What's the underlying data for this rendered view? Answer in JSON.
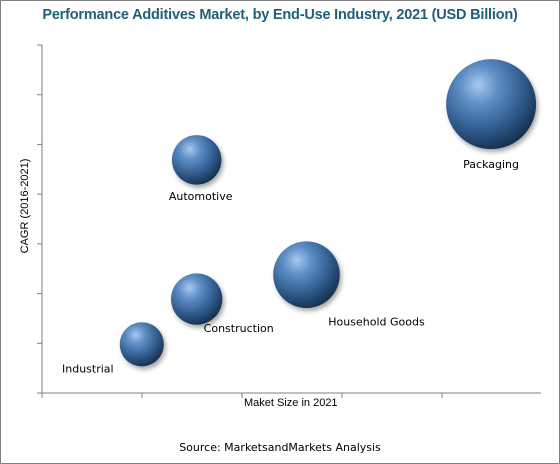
{
  "chart_data": {
    "type": "bubble",
    "title": "Performance Additives Market, by End-Use Industry, 2021 (USD Billion)",
    "xlabel": "Maket Size in 2021",
    "ylabel": "CAGR (2016-2021)",
    "source": "Source: MarketsandMarkets Analysis",
    "axis_values_shown": false,
    "grid": false,
    "points": [
      {
        "label": "Packaging",
        "x": 0.9,
        "y": 0.83,
        "size": 1.0
      },
      {
        "label": "Automotive",
        "x": 0.31,
        "y": 0.67,
        "size": 0.55
      },
      {
        "label": "Household Goods",
        "x": 0.53,
        "y": 0.34,
        "size": 0.74
      },
      {
        "label": "Construction",
        "x": 0.31,
        "y": 0.27,
        "size": 0.57
      },
      {
        "label": "Industrial",
        "x": 0.2,
        "y": 0.14,
        "size": 0.49
      }
    ],
    "bubble_color": "#3e6fa6"
  }
}
